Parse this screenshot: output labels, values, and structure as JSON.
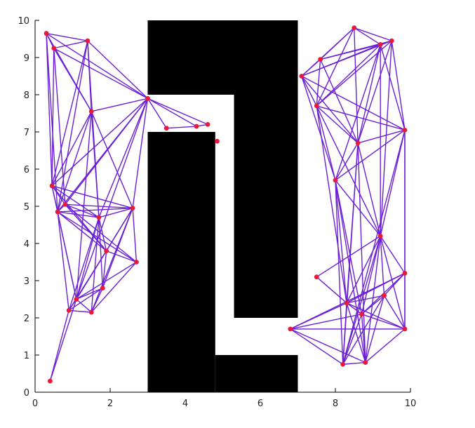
{
  "chart_data": {
    "type": "scatter",
    "title": "",
    "xlabel": "",
    "ylabel": "",
    "xlim": [
      0,
      10
    ],
    "ylim": [
      0,
      10
    ],
    "xticks": [
      0,
      2,
      4,
      6,
      8,
      10
    ],
    "yticks": [
      0,
      1,
      2,
      3,
      4,
      5,
      6,
      7,
      8,
      9,
      10
    ],
    "grid": false,
    "colors": {
      "edge": "#6a1fd6",
      "node": "#e8193c",
      "obstacle": "#000000",
      "axis": "#000000"
    },
    "obstacles": [
      {
        "x0": 3.0,
        "y0": 0.0,
        "x1": 4.8,
        "y1": 7.0
      },
      {
        "x0": 4.8,
        "y0": 0.0,
        "x1": 7.0,
        "y1": 1.0
      },
      {
        "x0": 3.0,
        "y0": 8.0,
        "x1": 7.0,
        "y1": 10.0
      },
      {
        "x0": 5.3,
        "y0": 2.0,
        "x1": 7.0,
        "y1": 8.0
      }
    ],
    "nodes": [
      {
        "x": 0.3,
        "y": 9.65
      },
      {
        "x": 0.5,
        "y": 9.25
      },
      {
        "x": 1.4,
        "y": 9.45
      },
      {
        "x": 1.5,
        "y": 7.55
      },
      {
        "x": 3.0,
        "y": 7.9
      },
      {
        "x": 3.5,
        "y": 7.1
      },
      {
        "x": 4.3,
        "y": 7.15
      },
      {
        "x": 4.6,
        "y": 7.2
      },
      {
        "x": 4.85,
        "y": 6.75
      },
      {
        "x": 0.45,
        "y": 5.55
      },
      {
        "x": 0.6,
        "y": 4.85
      },
      {
        "x": 0.8,
        "y": 5.05
      },
      {
        "x": 1.7,
        "y": 4.7
      },
      {
        "x": 2.6,
        "y": 4.95
      },
      {
        "x": 1.9,
        "y": 3.8
      },
      {
        "x": 2.7,
        "y": 3.5
      },
      {
        "x": 1.1,
        "y": 2.5
      },
      {
        "x": 0.9,
        "y": 2.2
      },
      {
        "x": 1.5,
        "y": 2.15
      },
      {
        "x": 1.8,
        "y": 2.8
      },
      {
        "x": 0.4,
        "y": 0.3
      },
      {
        "x": 7.1,
        "y": 8.5
      },
      {
        "x": 7.5,
        "y": 7.7
      },
      {
        "x": 7.6,
        "y": 8.95
      },
      {
        "x": 8.5,
        "y": 9.8
      },
      {
        "x": 9.2,
        "y": 9.35
      },
      {
        "x": 9.5,
        "y": 9.45
      },
      {
        "x": 9.85,
        "y": 7.05
      },
      {
        "x": 8.0,
        "y": 5.7
      },
      {
        "x": 8.6,
        "y": 6.7
      },
      {
        "x": 9.2,
        "y": 4.2
      },
      {
        "x": 7.5,
        "y": 3.1
      },
      {
        "x": 6.8,
        "y": 1.7
      },
      {
        "x": 8.2,
        "y": 0.75
      },
      {
        "x": 8.8,
        "y": 0.8
      },
      {
        "x": 9.85,
        "y": 1.7
      },
      {
        "x": 9.85,
        "y": 3.2
      },
      {
        "x": 8.3,
        "y": 2.4
      },
      {
        "x": 8.7,
        "y": 2.1
      },
      {
        "x": 9.3,
        "y": 2.6
      }
    ],
    "edges": [
      [
        0,
        1
      ],
      [
        0,
        2
      ],
      [
        0,
        3
      ],
      [
        0,
        9
      ],
      [
        0,
        10
      ],
      [
        0,
        4
      ],
      [
        1,
        2
      ],
      [
        1,
        3
      ],
      [
        1,
        9
      ],
      [
        1,
        11
      ],
      [
        1,
        4
      ],
      [
        2,
        3
      ],
      [
        2,
        9
      ],
      [
        2,
        4
      ],
      [
        2,
        10
      ],
      [
        2,
        12
      ],
      [
        3,
        4
      ],
      [
        3,
        9
      ],
      [
        3,
        10
      ],
      [
        3,
        13
      ],
      [
        4,
        5
      ],
      [
        4,
        6
      ],
      [
        4,
        7
      ],
      [
        4,
        9
      ],
      [
        4,
        10
      ],
      [
        4,
        11
      ],
      [
        4,
        12
      ],
      [
        4,
        13
      ],
      [
        4,
        16
      ],
      [
        5,
        6
      ],
      [
        6,
        7
      ],
      [
        9,
        10
      ],
      [
        9,
        11
      ],
      [
        9,
        12
      ],
      [
        9,
        13
      ],
      [
        9,
        14
      ],
      [
        9,
        16
      ],
      [
        10,
        11
      ],
      [
        10,
        12
      ],
      [
        10,
        13
      ],
      [
        10,
        14
      ],
      [
        10,
        15
      ],
      [
        10,
        16
      ],
      [
        10,
        17
      ],
      [
        11,
        12
      ],
      [
        11,
        13
      ],
      [
        11,
        14
      ],
      [
        11,
        15
      ],
      [
        12,
        13
      ],
      [
        12,
        14
      ],
      [
        12,
        16
      ],
      [
        12,
        17
      ],
      [
        12,
        18
      ],
      [
        12,
        19
      ],
      [
        13,
        14
      ],
      [
        13,
        15
      ],
      [
        13,
        16
      ],
      [
        13,
        18
      ],
      [
        13,
        19
      ],
      [
        14,
        15
      ],
      [
        14,
        16
      ],
      [
        14,
        17
      ],
      [
        14,
        19
      ],
      [
        15,
        16
      ],
      [
        15,
        18
      ],
      [
        16,
        17
      ],
      [
        16,
        18
      ],
      [
        16,
        19
      ],
      [
        17,
        18
      ],
      [
        17,
        19
      ],
      [
        17,
        20
      ],
      [
        18,
        19
      ],
      [
        16,
        20
      ],
      [
        3,
        12
      ],
      [
        3,
        16
      ],
      [
        21,
        22
      ],
      [
        21,
        23
      ],
      [
        21,
        24
      ],
      [
        21,
        25
      ],
      [
        21,
        26
      ],
      [
        21,
        27
      ],
      [
        21,
        28
      ],
      [
        21,
        29
      ],
      [
        22,
        23
      ],
      [
        22,
        24
      ],
      [
        22,
        25
      ],
      [
        22,
        26
      ],
      [
        22,
        27
      ],
      [
        22,
        28
      ],
      [
        22,
        29
      ],
      [
        22,
        30
      ],
      [
        23,
        24
      ],
      [
        23,
        25
      ],
      [
        23,
        26
      ],
      [
        23,
        29
      ],
      [
        24,
        25
      ],
      [
        24,
        26
      ],
      [
        24,
        29
      ],
      [
        25,
        26
      ],
      [
        25,
        27
      ],
      [
        25,
        28
      ],
      [
        25,
        29
      ],
      [
        25,
        30
      ],
      [
        26,
        27
      ],
      [
        26,
        29
      ],
      [
        27,
        28
      ],
      [
        27,
        29
      ],
      [
        27,
        30
      ],
      [
        27,
        36
      ],
      [
        27,
        35
      ],
      [
        28,
        29
      ],
      [
        28,
        30
      ],
      [
        28,
        33
      ],
      [
        28,
        34
      ],
      [
        28,
        37
      ],
      [
        28,
        38
      ],
      [
        29,
        30
      ],
      [
        29,
        33
      ],
      [
        29,
        37
      ],
      [
        30,
        31
      ],
      [
        30,
        33
      ],
      [
        30,
        34
      ],
      [
        30,
        35
      ],
      [
        30,
        36
      ],
      [
        30,
        37
      ],
      [
        30,
        38
      ],
      [
        30,
        39
      ],
      [
        31,
        37
      ],
      [
        32,
        33
      ],
      [
        32,
        34
      ],
      [
        32,
        35
      ],
      [
        32,
        36
      ],
      [
        32,
        37
      ],
      [
        32,
        38
      ],
      [
        33,
        34
      ],
      [
        33,
        37
      ],
      [
        33,
        38
      ],
      [
        33,
        39
      ],
      [
        34,
        35
      ],
      [
        34,
        37
      ],
      [
        34,
        38
      ],
      [
        34,
        39
      ],
      [
        35,
        36
      ],
      [
        35,
        37
      ],
      [
        35,
        38
      ],
      [
        35,
        39
      ],
      [
        36,
        37
      ],
      [
        36,
        38
      ],
      [
        36,
        39
      ],
      [
        37,
        38
      ],
      [
        37,
        39
      ],
      [
        38,
        39
      ],
      [
        29,
        34
      ],
      [
        27,
        33
      ],
      [
        22,
        37
      ],
      [
        26,
        30
      ]
    ]
  }
}
